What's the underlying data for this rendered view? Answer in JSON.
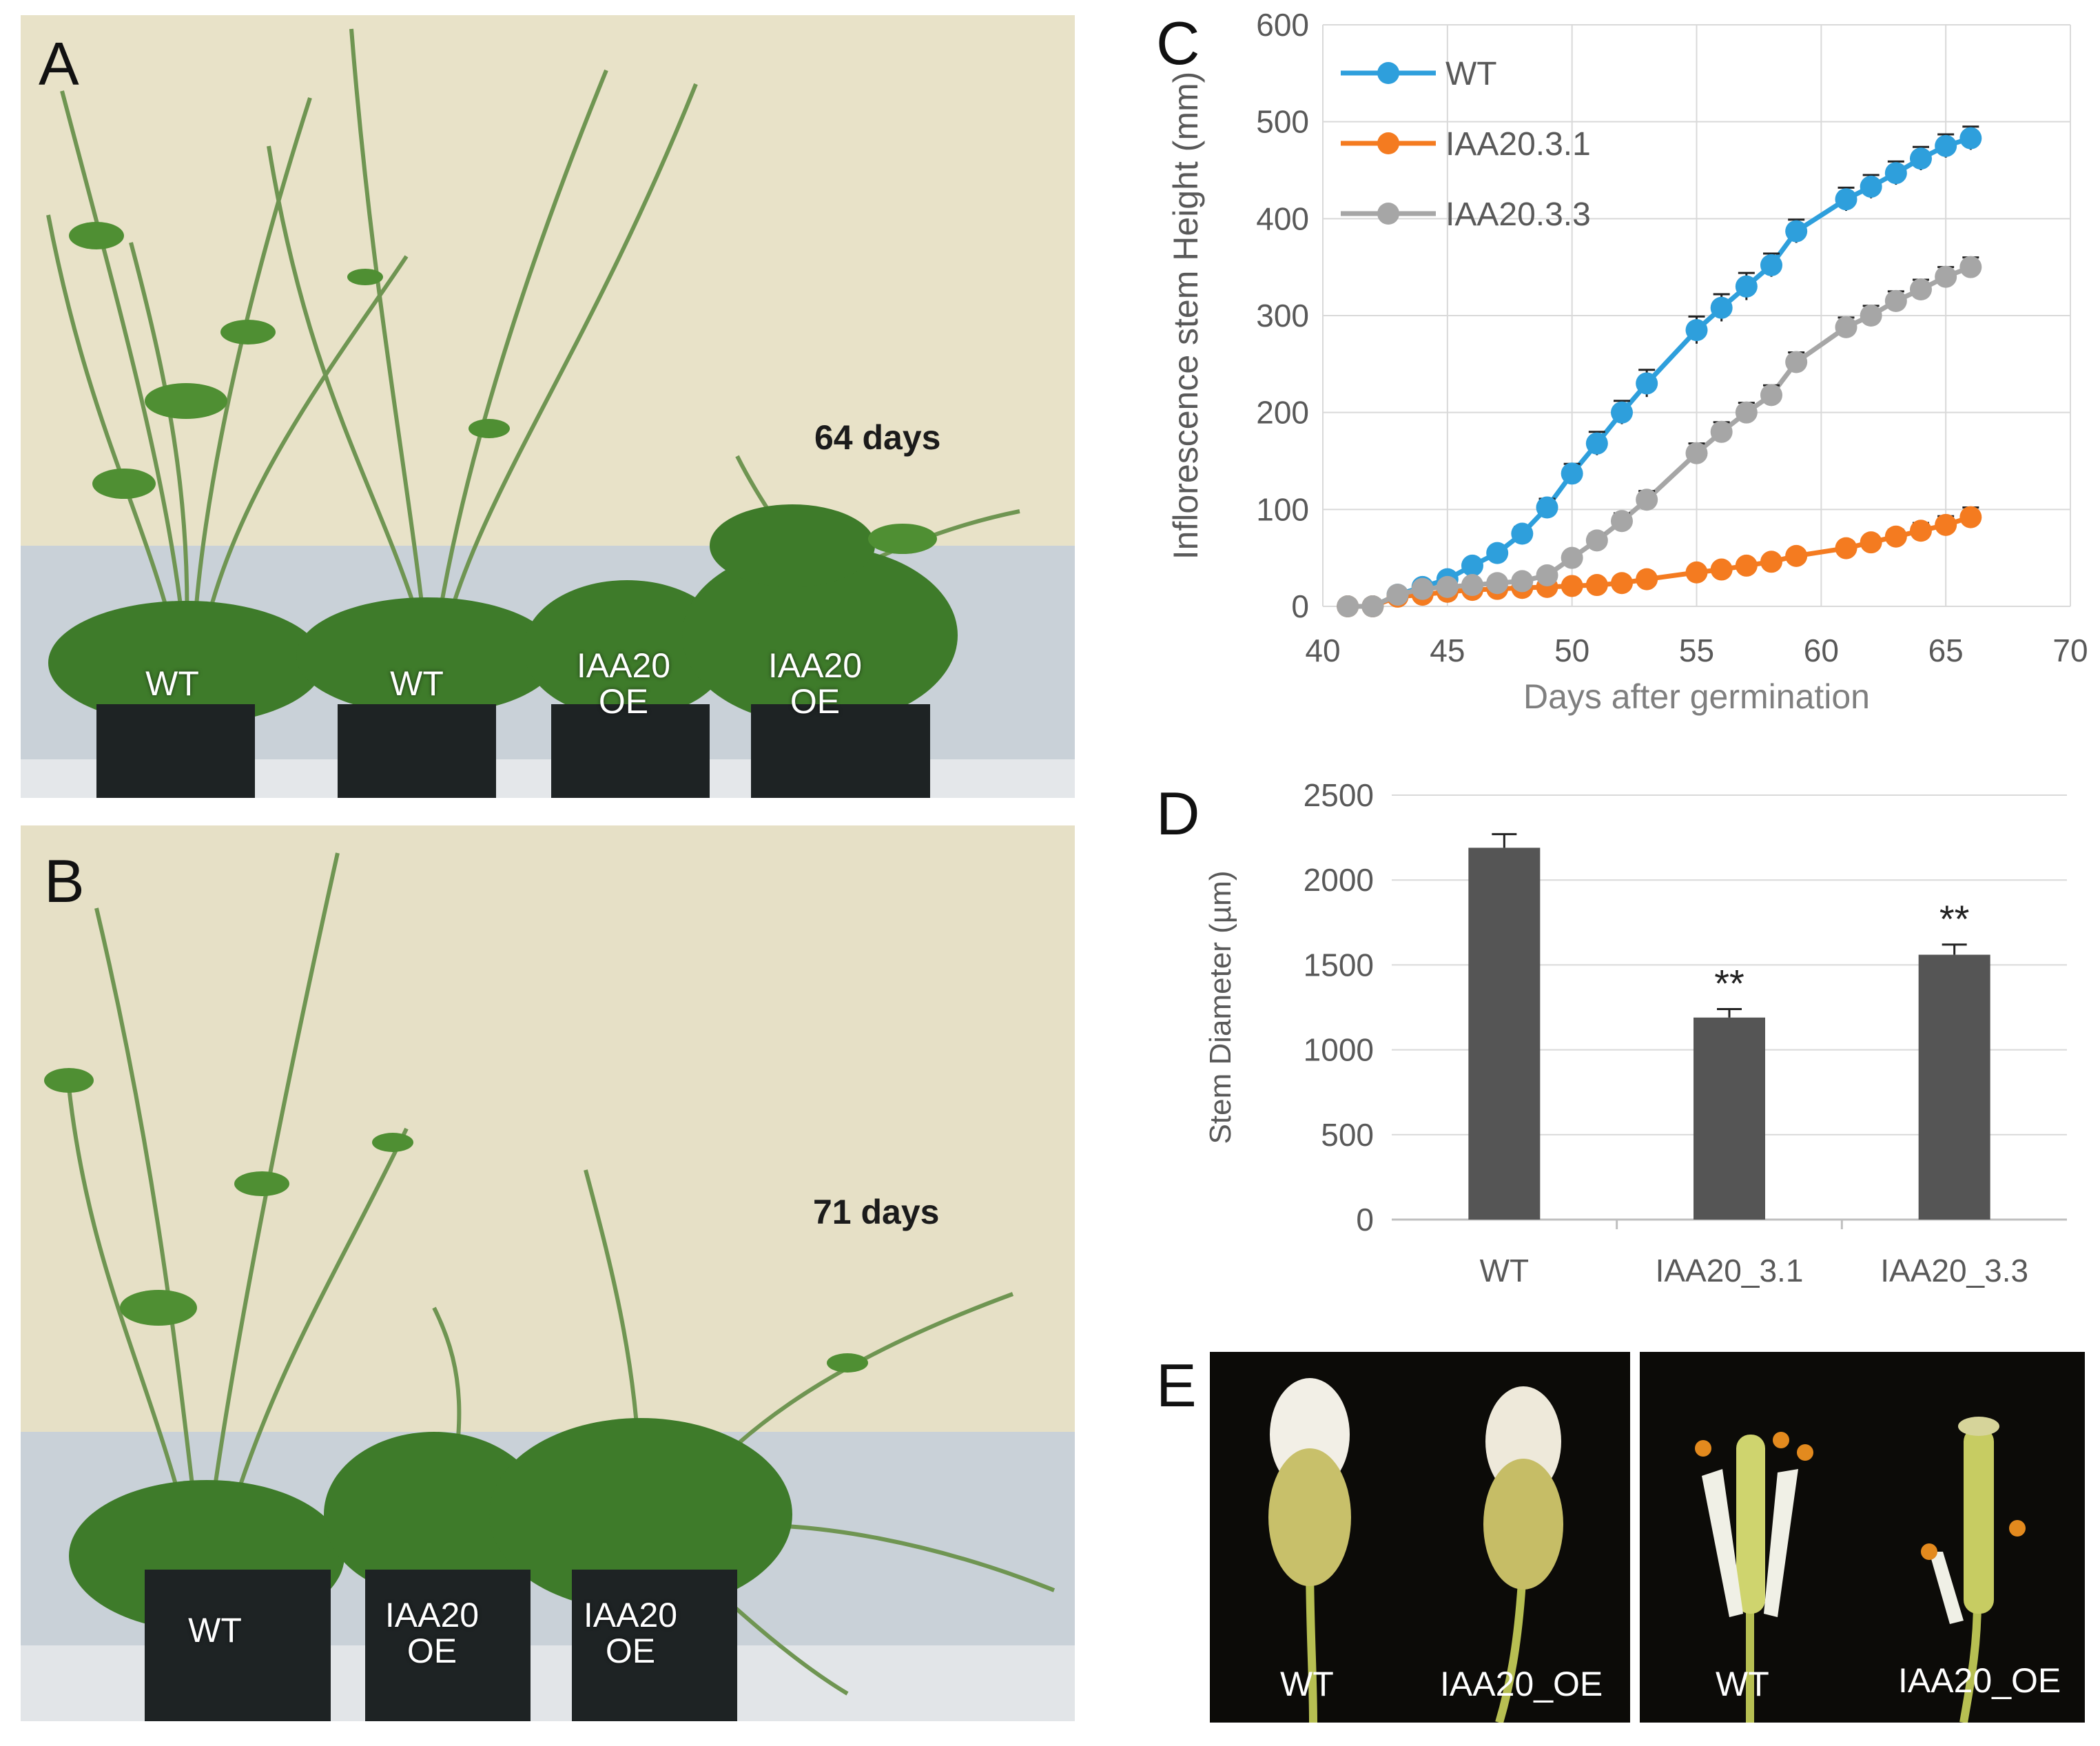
{
  "panels": {
    "A": {
      "letter": "A",
      "days": "64 days",
      "pots": [
        {
          "line1": "WT",
          "line2": ""
        },
        {
          "line1": "WT",
          "line2": ""
        },
        {
          "line1": "IAA20",
          "line2": "OE"
        },
        {
          "line1": "IAA20",
          "line2": "OE"
        }
      ]
    },
    "B": {
      "letter": "B",
      "days": "71 days",
      "pots": [
        {
          "line1": "WT",
          "line2": ""
        },
        {
          "line1": "IAA20",
          "line2": "OE"
        },
        {
          "line1": "IAA20",
          "line2": "OE"
        }
      ]
    },
    "C": {
      "letter": "C"
    },
    "D": {
      "letter": "D"
    },
    "E": {
      "letter": "E",
      "labels": [
        "WT",
        "IAA20_OE",
        "WT",
        "IAA20_OE"
      ]
    }
  },
  "colors": {
    "wt": "#2E9FDC",
    "iaa20_3_1": "#F47B20",
    "iaa20_3_3": "#A6A6A6",
    "bar": "#555555"
  },
  "chart_data": [
    {
      "panel": "C",
      "type": "line",
      "title": "",
      "xlabel": "Days after germination",
      "ylabel": "Inflorescence stem Height (mm)",
      "xlim": [
        40,
        70
      ],
      "ylim": [
        0,
        600
      ],
      "xticks": [
        40,
        45,
        50,
        55,
        60,
        65,
        70
      ],
      "yticks": [
        0,
        100,
        200,
        300,
        400,
        500,
        600
      ],
      "grid": true,
      "legend": "top-left",
      "error_bars": true,
      "series": [
        {
          "name": "WT",
          "x": [
            41,
            42,
            43,
            44,
            45,
            46,
            47,
            48,
            49,
            50,
            51,
            52,
            53,
            55,
            56,
            57,
            58,
            59,
            61,
            62,
            63,
            64,
            65,
            66
          ],
          "y": [
            0,
            0,
            12,
            20,
            28,
            42,
            55,
            75,
            102,
            137,
            168,
            200,
            230,
            285,
            308,
            330,
            352,
            387,
            420,
            433,
            447,
            462,
            475,
            483
          ],
          "err": [
            2,
            2,
            3,
            4,
            4,
            5,
            6,
            7,
            9,
            10,
            12,
            12,
            14,
            14,
            14,
            14,
            12,
            12,
            12,
            12,
            12,
            12,
            12,
            12
          ]
        },
        {
          "name": "IAA20.3.1",
          "x": [
            41,
            42,
            43,
            44,
            45,
            46,
            47,
            48,
            49,
            50,
            51,
            52,
            53,
            55,
            56,
            57,
            58,
            59,
            61,
            62,
            63,
            64,
            65,
            66
          ],
          "y": [
            0,
            0,
            10,
            12,
            15,
            17,
            18,
            19,
            20,
            21,
            22,
            24,
            28,
            35,
            38,
            42,
            46,
            52,
            60,
            66,
            72,
            78,
            84,
            92
          ],
          "err": [
            1,
            1,
            2,
            2,
            2,
            2,
            2,
            2,
            2,
            3,
            3,
            3,
            4,
            4,
            4,
            5,
            5,
            5,
            6,
            6,
            7,
            8,
            9,
            10
          ]
        },
        {
          "name": "IAA20.3.3",
          "x": [
            41,
            42,
            43,
            44,
            45,
            46,
            47,
            48,
            49,
            50,
            51,
            52,
            53,
            55,
            56,
            57,
            58,
            59,
            61,
            62,
            63,
            64,
            65,
            66
          ],
          "y": [
            0,
            0,
            12,
            18,
            20,
            22,
            24,
            26,
            32,
            50,
            68,
            88,
            110,
            158,
            180,
            200,
            218,
            252,
            288,
            300,
            315,
            327,
            340,
            350
          ],
          "err": [
            1,
            1,
            2,
            3,
            3,
            3,
            3,
            4,
            5,
            6,
            7,
            8,
            9,
            10,
            10,
            10,
            10,
            10,
            10,
            10,
            10,
            10,
            10,
            10
          ]
        }
      ]
    },
    {
      "panel": "D",
      "type": "bar",
      "title": "",
      "xlabel": "",
      "ylabel": "Stem Diameter (µm)",
      "categories": [
        "WT",
        "IAA20_3.1",
        "IAA20_3.3"
      ],
      "values": [
        2190,
        1190,
        1560
      ],
      "errors": [
        80,
        50,
        60
      ],
      "annotations": [
        "",
        "**",
        "**"
      ],
      "ylim": [
        0,
        2500
      ],
      "yticks": [
        0,
        500,
        1000,
        1500,
        2000,
        2500
      ],
      "grid": true
    }
  ]
}
